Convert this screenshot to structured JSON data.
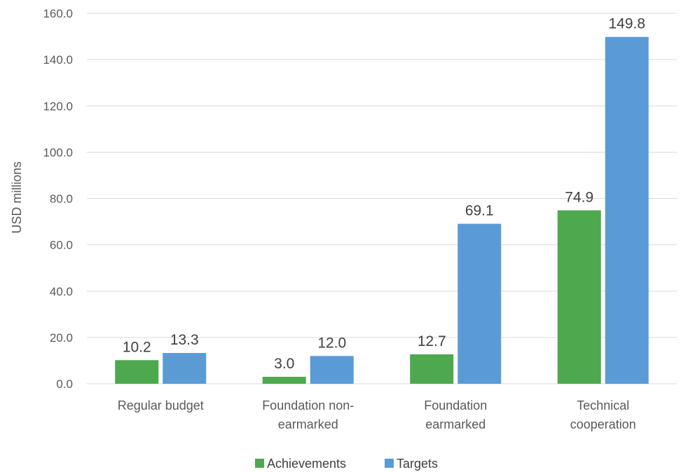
{
  "chart_data": {
    "type": "bar",
    "ylabel": "USD millions",
    "ylim": [
      0,
      160
    ],
    "ytick_step": 20,
    "ytick_labels": [
      "0.0",
      "20.0",
      "40.0",
      "60.0",
      "80.0",
      "100.0",
      "120.0",
      "140.0",
      "160.0"
    ],
    "categories": [
      [
        "Regular budget"
      ],
      [
        "Foundation non-",
        "earmarked"
      ],
      [
        "Foundation",
        "earmarked"
      ],
      [
        "Technical",
        "cooperation"
      ]
    ],
    "series": [
      {
        "name": "Achievements",
        "color": "#4ea84e",
        "values": [
          10.2,
          3.0,
          12.7,
          74.9
        ],
        "labels": [
          "10.2",
          "3.0",
          "12.7",
          "74.9"
        ]
      },
      {
        "name": "Targets",
        "color": "#5b9bd5",
        "values": [
          13.3,
          12.0,
          69.1,
          149.8
        ],
        "labels": [
          "13.3",
          "12.0",
          "69.1",
          "149.8"
        ]
      }
    ],
    "grid": true,
    "legend_position": "bottom"
  }
}
